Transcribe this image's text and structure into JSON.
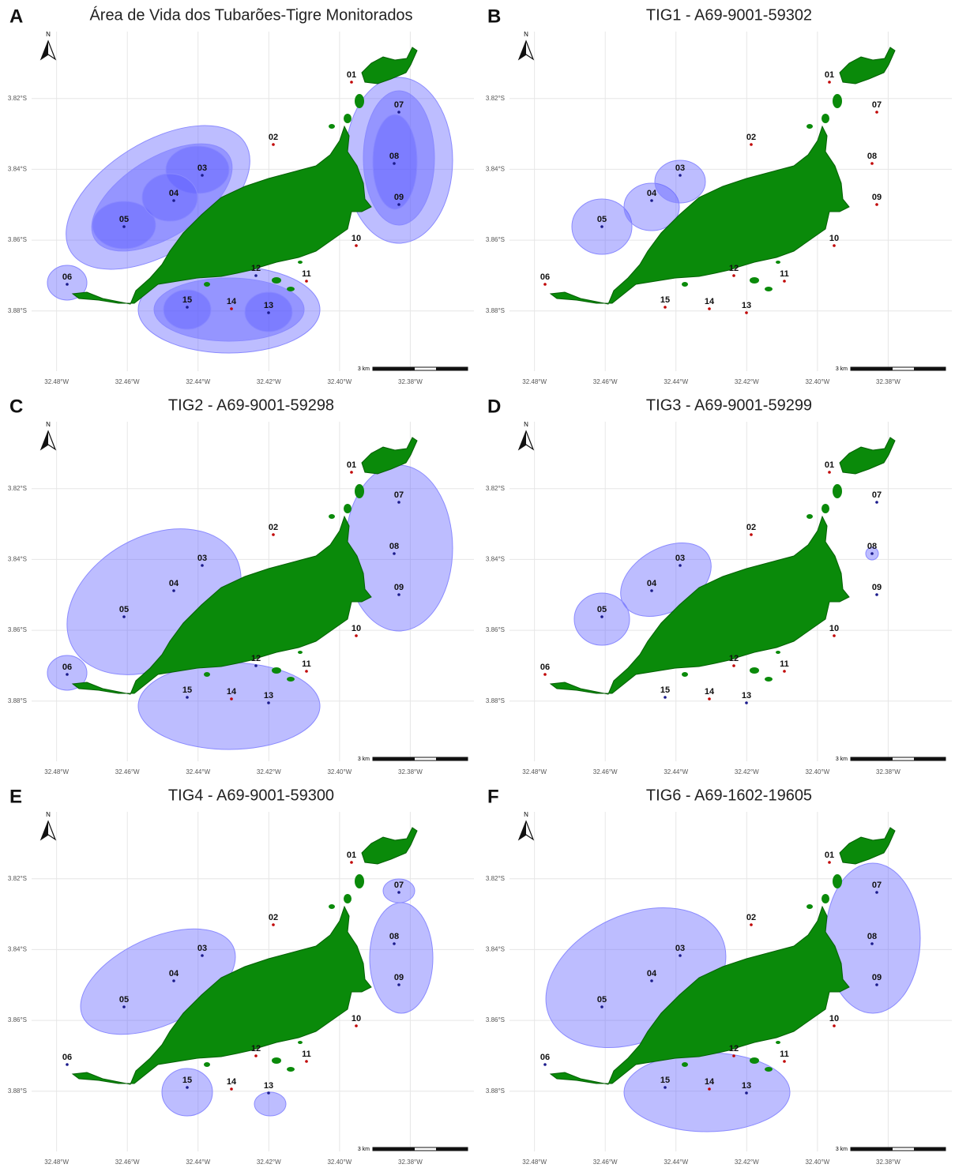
{
  "panels": [
    {
      "letter": "A",
      "title": "Área de Vida dos Tubarões-Tigre Monitorados",
      "north": "N",
      "scale_label": "3 km",
      "xlim": [
        -32.496,
        -32.362
      ],
      "ylim": [
        -3.897,
        -3.8
      ],
      "xticks": [
        {
          "value": -32.48,
          "label": "32.48°W"
        },
        {
          "value": -32.46,
          "label": "32.46°W"
        },
        {
          "value": -32.44,
          "label": "32.44°W"
        },
        {
          "value": -32.42,
          "label": "32.42°W"
        },
        {
          "value": -32.4,
          "label": "32.40°W"
        },
        {
          "value": -32.38,
          "label": "32.38°W"
        }
      ],
      "yticks": [
        {
          "value": -3.82,
          "label": "3.82°S"
        },
        {
          "value": -3.84,
          "label": "3.84°S"
        },
        {
          "value": -3.86,
          "label": "3.86°S"
        },
        {
          "value": -3.88,
          "label": "3.88°S"
        }
      ],
      "stations": [
        {
          "label": "01",
          "color": "#c00000"
        },
        {
          "label": "02",
          "color": "#c00000"
        },
        {
          "label": "03",
          "color": "#1a1a8c"
        },
        {
          "label": "04",
          "color": "#1a1a8c"
        },
        {
          "label": "05",
          "color": "#1a1a8c"
        },
        {
          "label": "06",
          "color": "#1a1a8c"
        },
        {
          "label": "07",
          "color": "#1a1a8c"
        },
        {
          "label": "08",
          "color": "#1a1a8c"
        },
        {
          "label": "09",
          "color": "#1a1a8c"
        },
        {
          "label": "10",
          "color": "#c00000"
        },
        {
          "label": "11",
          "color": "#c00000"
        },
        {
          "label": "12",
          "color": "#1a1a8c"
        },
        {
          "label": "13",
          "color": "#1a1a8c"
        },
        {
          "label": "14",
          "color": "#c00000"
        },
        {
          "label": "15",
          "color": "#1a1a8c"
        }
      ]
    },
    {
      "letter": "B",
      "title": "TIG1 - A69-9001-59302",
      "north": "N",
      "scale_label": "3 km",
      "xlim": [
        -32.496,
        -32.362
      ],
      "ylim": [
        -3.897,
        -3.8
      ],
      "xticks": [
        {
          "value": -32.48,
          "label": "32.48°W"
        },
        {
          "value": -32.46,
          "label": "32.46°W"
        },
        {
          "value": -32.44,
          "label": "32.44°W"
        },
        {
          "value": -32.42,
          "label": "32.42°W"
        },
        {
          "value": -32.4,
          "label": "32.40°W"
        },
        {
          "value": -32.38,
          "label": "32.38°W"
        }
      ],
      "yticks": [
        {
          "value": -3.82,
          "label": "3.82°S"
        },
        {
          "value": -3.84,
          "label": "3.84°S"
        },
        {
          "value": -3.86,
          "label": "3.86°S"
        },
        {
          "value": -3.88,
          "label": "3.88°S"
        }
      ],
      "stations": [
        {
          "label": "01",
          "color": "#c00000"
        },
        {
          "label": "02",
          "color": "#c00000"
        },
        {
          "label": "03",
          "color": "#1a1a8c"
        },
        {
          "label": "04",
          "color": "#1a1a8c"
        },
        {
          "label": "05",
          "color": "#1a1a8c"
        },
        {
          "label": "06",
          "color": "#c00000"
        },
        {
          "label": "07",
          "color": "#c00000"
        },
        {
          "label": "08",
          "color": "#c00000"
        },
        {
          "label": "09",
          "color": "#c00000"
        },
        {
          "label": "10",
          "color": "#c00000"
        },
        {
          "label": "11",
          "color": "#c00000"
        },
        {
          "label": "12",
          "color": "#c00000"
        },
        {
          "label": "13",
          "color": "#c00000"
        },
        {
          "label": "14",
          "color": "#c00000"
        },
        {
          "label": "15",
          "color": "#c00000"
        }
      ]
    },
    {
      "letter": "C",
      "title": "TIG2 - A69-9001-59298",
      "north": "N",
      "scale_label": "3 km",
      "xlim": [
        -32.496,
        -32.362
      ],
      "ylim": [
        -3.897,
        -3.8
      ],
      "xticks": [
        {
          "value": -32.48,
          "label": "32.48°W"
        },
        {
          "value": -32.46,
          "label": "32.46°W"
        },
        {
          "value": -32.44,
          "label": "32.44°W"
        },
        {
          "value": -32.42,
          "label": "32.42°W"
        },
        {
          "value": -32.4,
          "label": "32.40°W"
        },
        {
          "value": -32.38,
          "label": "32.38°W"
        }
      ],
      "yticks": [
        {
          "value": -3.82,
          "label": "3.82°S"
        },
        {
          "value": -3.84,
          "label": "3.84°S"
        },
        {
          "value": -3.86,
          "label": "3.86°S"
        },
        {
          "value": -3.88,
          "label": "3.88°S"
        }
      ],
      "stations": [
        {
          "label": "01",
          "color": "#c00000"
        },
        {
          "label": "02",
          "color": "#c00000"
        },
        {
          "label": "03",
          "color": "#1a1a8c"
        },
        {
          "label": "04",
          "color": "#1a1a8c"
        },
        {
          "label": "05",
          "color": "#1a1a8c"
        },
        {
          "label": "06",
          "color": "#1a1a8c"
        },
        {
          "label": "07",
          "color": "#1a1a8c"
        },
        {
          "label": "08",
          "color": "#1a1a8c"
        },
        {
          "label": "09",
          "color": "#1a1a8c"
        },
        {
          "label": "10",
          "color": "#c00000"
        },
        {
          "label": "11",
          "color": "#c00000"
        },
        {
          "label": "12",
          "color": "#1a1a8c"
        },
        {
          "label": "13",
          "color": "#1a1a8c"
        },
        {
          "label": "14",
          "color": "#c00000"
        },
        {
          "label": "15",
          "color": "#1a1a8c"
        }
      ]
    },
    {
      "letter": "D",
      "title": "TIG3 - A69-9001-59299",
      "north": "N",
      "scale_label": "3 km",
      "xlim": [
        -32.496,
        -32.362
      ],
      "ylim": [
        -3.897,
        -3.8
      ],
      "xticks": [
        {
          "value": -32.48,
          "label": "32.48°W"
        },
        {
          "value": -32.46,
          "label": "32.46°W"
        },
        {
          "value": -32.44,
          "label": "32.44°W"
        },
        {
          "value": -32.42,
          "label": "32.42°W"
        },
        {
          "value": -32.4,
          "label": "32.40°W"
        },
        {
          "value": -32.38,
          "label": "32.38°W"
        }
      ],
      "yticks": [
        {
          "value": -3.82,
          "label": "3.82°S"
        },
        {
          "value": -3.84,
          "label": "3.84°S"
        },
        {
          "value": -3.86,
          "label": "3.86°S"
        },
        {
          "value": -3.88,
          "label": "3.88°S"
        }
      ],
      "stations": [
        {
          "label": "01",
          "color": "#c00000"
        },
        {
          "label": "02",
          "color": "#c00000"
        },
        {
          "label": "03",
          "color": "#1a1a8c"
        },
        {
          "label": "04",
          "color": "#1a1a8c"
        },
        {
          "label": "05",
          "color": "#1a1a8c"
        },
        {
          "label": "06",
          "color": "#c00000"
        },
        {
          "label": "07",
          "color": "#1a1a8c"
        },
        {
          "label": "08",
          "color": "#1a1a8c"
        },
        {
          "label": "09",
          "color": "#1a1a8c"
        },
        {
          "label": "10",
          "color": "#c00000"
        },
        {
          "label": "11",
          "color": "#c00000"
        },
        {
          "label": "12",
          "color": "#c00000"
        },
        {
          "label": "13",
          "color": "#1a1a8c"
        },
        {
          "label": "14",
          "color": "#c00000"
        },
        {
          "label": "15",
          "color": "#1a1a8c"
        }
      ]
    },
    {
      "letter": "E",
      "title": "TIG4 - A69-9001-59300",
      "north": "N",
      "scale_label": "3 km",
      "xlim": [
        -32.496,
        -32.362
      ],
      "ylim": [
        -3.897,
        -3.8
      ],
      "xticks": [
        {
          "value": -32.48,
          "label": "32.48°W"
        },
        {
          "value": -32.46,
          "label": "32.46°W"
        },
        {
          "value": -32.44,
          "label": "32.44°W"
        },
        {
          "value": -32.42,
          "label": "32.42°W"
        },
        {
          "value": -32.4,
          "label": "32.40°W"
        },
        {
          "value": -32.38,
          "label": "32.38°W"
        }
      ],
      "yticks": [
        {
          "value": -3.82,
          "label": "3.82°S"
        },
        {
          "value": -3.84,
          "label": "3.84°S"
        },
        {
          "value": -3.86,
          "label": "3.86°S"
        },
        {
          "value": -3.88,
          "label": "3.88°S"
        }
      ],
      "stations": [
        {
          "label": "01",
          "color": "#c00000"
        },
        {
          "label": "02",
          "color": "#c00000"
        },
        {
          "label": "03",
          "color": "#1a1a8c"
        },
        {
          "label": "04",
          "color": "#1a1a8c"
        },
        {
          "label": "05",
          "color": "#1a1a8c"
        },
        {
          "label": "06",
          "color": "#1a1a8c"
        },
        {
          "label": "07",
          "color": "#1a1a8c"
        },
        {
          "label": "08",
          "color": "#1a1a8c"
        },
        {
          "label": "09",
          "color": "#1a1a8c"
        },
        {
          "label": "10",
          "color": "#c00000"
        },
        {
          "label": "11",
          "color": "#c00000"
        },
        {
          "label": "12",
          "color": "#c00000"
        },
        {
          "label": "13",
          "color": "#1a1a8c"
        },
        {
          "label": "14",
          "color": "#c00000"
        },
        {
          "label": "15",
          "color": "#1a1a8c"
        }
      ]
    },
    {
      "letter": "F",
      "title": "TIG6 - A69-1602-19605",
      "north": "N",
      "scale_label": "3 km",
      "xlim": [
        -32.496,
        -32.362
      ],
      "ylim": [
        -3.897,
        -3.8
      ],
      "xticks": [
        {
          "value": -32.48,
          "label": "32.48°W"
        },
        {
          "value": -32.46,
          "label": "32.46°W"
        },
        {
          "value": -32.44,
          "label": "32.44°W"
        },
        {
          "value": -32.42,
          "label": "32.42°W"
        },
        {
          "value": -32.4,
          "label": "32.40°W"
        },
        {
          "value": -32.38,
          "label": "32.38°W"
        }
      ],
      "yticks": [
        {
          "value": -3.82,
          "label": "3.82°S"
        },
        {
          "value": -3.84,
          "label": "3.84°S"
        },
        {
          "value": -3.86,
          "label": "3.86°S"
        },
        {
          "value": -3.88,
          "label": "3.88°S"
        }
      ],
      "stations": [
        {
          "label": "01",
          "color": "#c00000"
        },
        {
          "label": "02",
          "color": "#c00000"
        },
        {
          "label": "03",
          "color": "#1a1a8c"
        },
        {
          "label": "04",
          "color": "#1a1a8c"
        },
        {
          "label": "05",
          "color": "#1a1a8c"
        },
        {
          "label": "06",
          "color": "#1a1a8c"
        },
        {
          "label": "07",
          "color": "#1a1a8c"
        },
        {
          "label": "08",
          "color": "#1a1a8c"
        },
        {
          "label": "09",
          "color": "#1a1a8c"
        },
        {
          "label": "10",
          "color": "#c00000"
        },
        {
          "label": "11",
          "color": "#c00000"
        },
        {
          "label": "12",
          "color": "#c00000"
        },
        {
          "label": "13",
          "color": "#1a1a8c"
        },
        {
          "label": "14",
          "color": "#c00000"
        },
        {
          "label": "15",
          "color": "#1a1a8c"
        }
      ]
    }
  ]
}
